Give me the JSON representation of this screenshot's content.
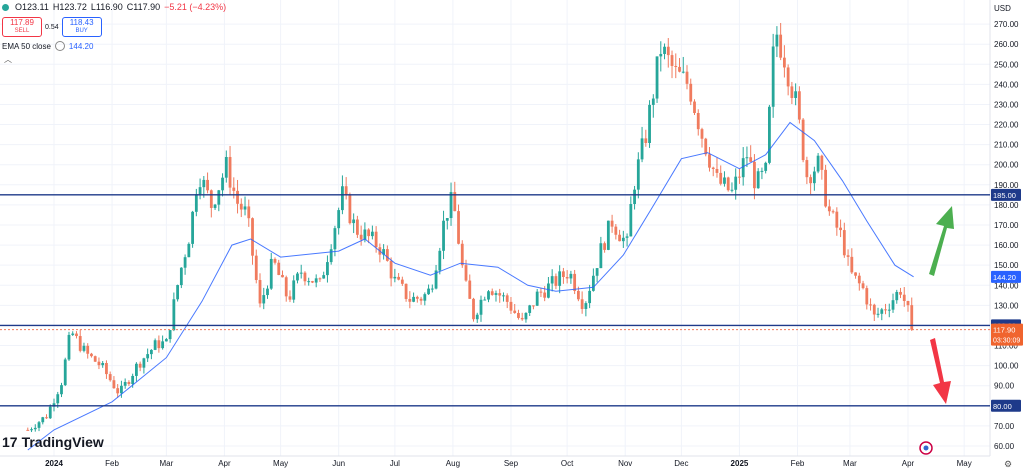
{
  "legend": {
    "open": "O123.11",
    "high": "H123.72",
    "low": "L116.90",
    "close": "C117.90",
    "change": "−5.21 (−4.23%)"
  },
  "trade": {
    "sell_price": "117.89",
    "sell_label": "SELL",
    "spread": "0.54",
    "buy_price": "118.43",
    "buy_label": "BUY"
  },
  "indicator": {
    "name": "EMA 50 close",
    "value": "144.20"
  },
  "branding": {
    "logo_text": "TradingView"
  },
  "colors": {
    "up": "#26a69a",
    "down": "#f07b5e",
    "ema": "#2962ff",
    "level": "#1e3a8a",
    "arrow_up": "#4caf50",
    "arrow_down": "#f23645",
    "price_badge": "#f0642e"
  },
  "chart_data": {
    "type": "candlestick",
    "currency": "USD",
    "y_ticks": [
      60,
      70,
      80,
      90,
      100,
      110,
      120,
      130,
      140,
      150,
      160,
      170,
      180,
      190,
      200,
      210,
      220,
      230,
      240,
      250,
      260,
      270
    ],
    "ylim": [
      55,
      282
    ],
    "x_labels": [
      "2024",
      "Feb",
      "Mar",
      "Apr",
      "May",
      "Jun",
      "Jul",
      "Aug",
      "Sep",
      "Oct",
      "Nov",
      "Dec",
      "2025",
      "Feb",
      "Mar",
      "Apr",
      "May"
    ],
    "x_dates": [
      "2024-01-01",
      "2024-02-01",
      "2024-03-01",
      "2024-04-01",
      "2024-05-01",
      "2024-06-01",
      "2024-07-01",
      "2024-08-01",
      "2024-09-01",
      "2024-10-01",
      "2024-11-01",
      "2024-12-01",
      "2025-01-01",
      "2025-02-01",
      "2025-03-01",
      "2025-04-01",
      "2025-05-01"
    ],
    "horizontal_levels": [
      185,
      120,
      80
    ],
    "level_labels": [
      "185.00",
      "120.00",
      "80.00"
    ],
    "ema_label": "144.20",
    "last_price": {
      "value": 117.9,
      "label": "117.90",
      "countdown": "03:30:09"
    },
    "price_path": [
      [
        "2023-12-18",
        68
      ],
      [
        "2023-12-28",
        75
      ],
      [
        "2024-01-05",
        92
      ],
      [
        "2024-01-10",
        117
      ],
      [
        "2024-01-18",
        106
      ],
      [
        "2024-01-26",
        100
      ],
      [
        "2024-02-05",
        86
      ],
      [
        "2024-02-15",
        101
      ],
      [
        "2024-02-25",
        111
      ],
      [
        "2024-03-01",
        111
      ],
      [
        "2024-03-08",
        145
      ],
      [
        "2024-03-14",
        168
      ],
      [
        "2024-03-18",
        197
      ],
      [
        "2024-03-25",
        180
      ],
      [
        "2024-04-02",
        199
      ],
      [
        "2024-04-08",
        181
      ],
      [
        "2024-04-13",
        175
      ],
      [
        "2024-04-20",
        129
      ],
      [
        "2024-04-27",
        152
      ],
      [
        "2024-05-05",
        133
      ],
      [
        "2024-05-12",
        147
      ],
      [
        "2024-05-22",
        140
      ],
      [
        "2024-06-03",
        185
      ],
      [
        "2024-06-10",
        168
      ],
      [
        "2024-06-18",
        163
      ],
      [
        "2024-06-24",
        158
      ],
      [
        "2024-07-01",
        142
      ],
      [
        "2024-07-09",
        133
      ],
      [
        "2024-07-16",
        134
      ],
      [
        "2024-07-20",
        138
      ],
      [
        "2024-07-28",
        175
      ],
      [
        "2024-08-01",
        183
      ],
      [
        "2024-08-07",
        142
      ],
      [
        "2024-08-12",
        125
      ],
      [
        "2024-08-20",
        140
      ],
      [
        "2024-08-30",
        132
      ],
      [
        "2024-09-07",
        121
      ],
      [
        "2024-09-15",
        135
      ],
      [
        "2024-09-25",
        142
      ],
      [
        "2024-10-02",
        147
      ],
      [
        "2024-10-10",
        130
      ],
      [
        "2024-10-18",
        155
      ],
      [
        "2024-10-25",
        172
      ],
      [
        "2024-11-02",
        160
      ],
      [
        "2024-11-05",
        188
      ],
      [
        "2024-11-12",
        215
      ],
      [
        "2024-11-20",
        258
      ],
      [
        "2024-11-28",
        245
      ],
      [
        "2024-12-05",
        240
      ],
      [
        "2024-12-12",
        215
      ],
      [
        "2024-12-20",
        192
      ],
      [
        "2024-12-28",
        186
      ],
      [
        "2025-01-05",
        205
      ],
      [
        "2025-01-10",
        190
      ],
      [
        "2025-01-15",
        196
      ],
      [
        "2025-01-20",
        268
      ],
      [
        "2025-01-25",
        254
      ],
      [
        "2025-01-31",
        231
      ],
      [
        "2025-02-06",
        195
      ],
      [
        "2025-02-12",
        200
      ],
      [
        "2025-02-18",
        176
      ],
      [
        "2025-02-25",
        163
      ],
      [
        "2025-03-01",
        146
      ],
      [
        "2025-03-08",
        138
      ],
      [
        "2025-03-14",
        124
      ],
      [
        "2025-03-22",
        131
      ],
      [
        "2025-03-28",
        138
      ],
      [
        "2025-04-02",
        124
      ],
      [
        "2025-04-04",
        117.9
      ]
    ],
    "ema50_path": [
      [
        "2023-12-18",
        58
      ],
      [
        "2024-01-01",
        68
      ],
      [
        "2024-02-01",
        82
      ],
      [
        "2024-03-01",
        104
      ],
      [
        "2024-03-20",
        132
      ],
      [
        "2024-04-05",
        160
      ],
      [
        "2024-04-15",
        163
      ],
      [
        "2024-05-01",
        154
      ],
      [
        "2024-06-01",
        157
      ],
      [
        "2024-06-15",
        163
      ],
      [
        "2024-07-01",
        151
      ],
      [
        "2024-07-20",
        145
      ],
      [
        "2024-08-05",
        151
      ],
      [
        "2024-08-25",
        149
      ],
      [
        "2024-09-10",
        140
      ],
      [
        "2024-09-25",
        137
      ],
      [
        "2024-10-15",
        139
      ],
      [
        "2024-10-31",
        155
      ],
      [
        "2024-11-15",
        178
      ],
      [
        "2024-12-01",
        203
      ],
      [
        "2024-12-15",
        206
      ],
      [
        "2025-01-01",
        198
      ],
      [
        "2025-01-15",
        205
      ],
      [
        "2025-01-28",
        221
      ],
      [
        "2025-02-10",
        212
      ],
      [
        "2025-02-25",
        192
      ],
      [
        "2025-03-10",
        172
      ],
      [
        "2025-03-25",
        150
      ],
      [
        "2025-04-04",
        144.2
      ]
    ]
  }
}
